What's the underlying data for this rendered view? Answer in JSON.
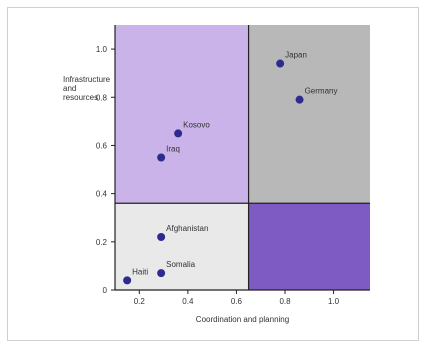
{
  "chart_data": {
    "type": "scatter",
    "title": "",
    "xlabel": "Coordination and planning",
    "ylabel": "Infrastructure and resources",
    "ylabel_lines": [
      "Infrastructure",
      "and",
      "resources"
    ],
    "xlim": [
      0.1,
      1.15
    ],
    "ylim": [
      0,
      1.1
    ],
    "x_ticks": [
      0.2,
      0.4,
      0.6,
      0.8,
      1.0
    ],
    "x_tick_labels": [
      "0.2",
      "0.4",
      "0.6",
      "0.8",
      "1.0"
    ],
    "y_ticks": [
      0,
      0.2,
      0.4,
      0.6,
      0.8,
      1.0
    ],
    "y_tick_labels": [
      "0",
      "0.2",
      "0.4",
      "0.6",
      "0.8",
      "1.0"
    ],
    "divider": {
      "x": 0.65,
      "y": 0.36
    },
    "quadrant_colors": {
      "top_left": "#c9b3e8",
      "top_right": "#b8b8b8",
      "bottom_left": "#e9e9e9",
      "bottom_right": "#7d5bc2"
    },
    "point_color": "#2e2a8f",
    "grid": false,
    "points": [
      {
        "label": "Japan",
        "x": 0.78,
        "y": 0.94
      },
      {
        "label": "Germany",
        "x": 0.86,
        "y": 0.79
      },
      {
        "label": "Kosovo",
        "x": 0.36,
        "y": 0.65
      },
      {
        "label": "Iraq",
        "x": 0.29,
        "y": 0.55
      },
      {
        "label": "Afghanistan",
        "x": 0.29,
        "y": 0.22
      },
      {
        "label": "Somalia",
        "x": 0.29,
        "y": 0.07
      },
      {
        "label": "Haiti",
        "x": 0.15,
        "y": 0.04
      }
    ]
  }
}
